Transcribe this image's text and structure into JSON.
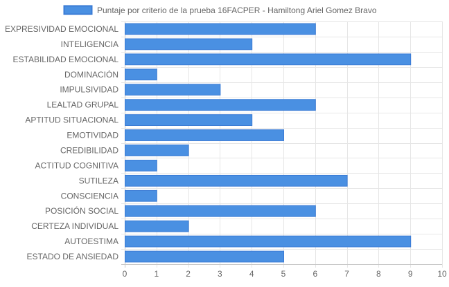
{
  "chart_data": {
    "type": "bar",
    "orientation": "horizontal",
    "categories": [
      "EXPRESIVIDAD EMOCIONAL",
      "INTELIGENCIA",
      "ESTABILIDAD EMOCIONAL",
      "DOMINACIÓN",
      "IMPULSIVIDAD",
      "LEALTAD GRUPAL",
      "APTITUD SITUACIONAL",
      "EMOTIVIDAD",
      "CREDIBILIDAD",
      "ACTITUD COGNITIVA",
      "SUTILEZA",
      "CONSCIENCIA",
      "POSICIÓN SOCIAL",
      "CERTEZA INDIVIDUAL",
      "AUTOESTIMA",
      "ESTADO DE ANSIEDAD"
    ],
    "series": [
      {
        "name": "Puntaje por criterio de la prueba 16FACPER - Hamiltong Ariel Gomez Bravo",
        "values": [
          6,
          4,
          9,
          1,
          3,
          6,
          4,
          5,
          2,
          1,
          7,
          1,
          6,
          2,
          9,
          5
        ],
        "color": "#4a90e2",
        "border_color": "#3a7bd5"
      }
    ],
    "xlim": [
      0,
      10
    ],
    "x_ticks": [
      0,
      1,
      2,
      3,
      4,
      5,
      6,
      7,
      8,
      9,
      10
    ],
    "grid": true,
    "legend_position": "top",
    "grid_color": "#e6e6e6",
    "axis_line_color": "#c8c8c8",
    "label_color": "#666666"
  }
}
